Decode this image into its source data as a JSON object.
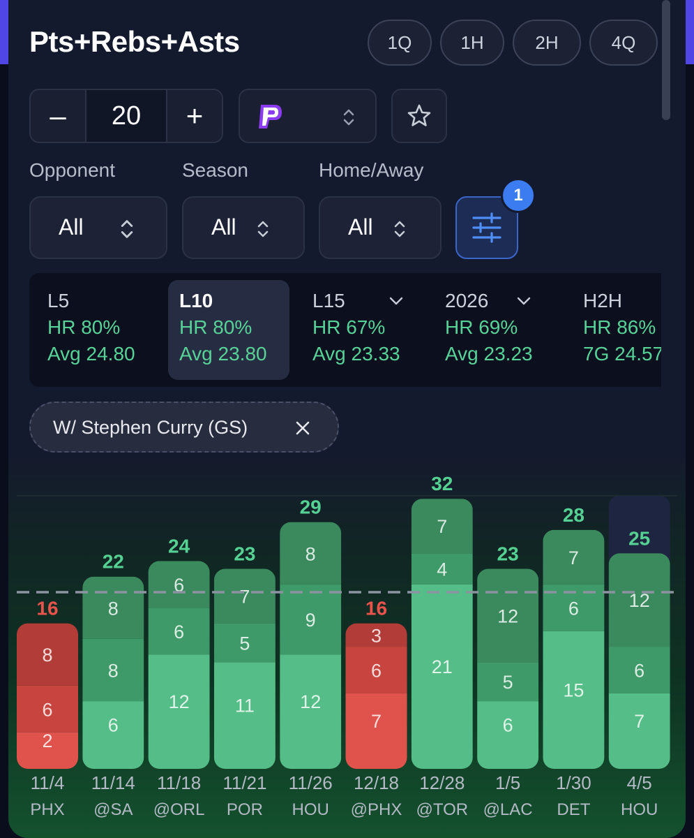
{
  "header": {
    "title": "Pts+Rebs+Asts",
    "periods": [
      "1Q",
      "1H",
      "2H",
      "4Q"
    ]
  },
  "line_control": {
    "minus": "–",
    "value": "20",
    "plus": "+"
  },
  "icons": {
    "sportsbook": "prizepicks-logo",
    "favorite": "star-icon",
    "filters": "sliders-icon",
    "remove_chip": "close-icon",
    "select": "chevron-updown-icon",
    "dropdown": "chevron-down-icon"
  },
  "filters": {
    "opponent": {
      "label": "Opponent",
      "value": "All"
    },
    "season": {
      "label": "Season",
      "value": "All"
    },
    "home_away": {
      "label": "Home/Away",
      "value": "All"
    },
    "active_count": "1"
  },
  "stats": [
    {
      "name": "L5",
      "hr": "HR 80%",
      "avg": "Avg 24.80",
      "active": false,
      "dropdown": false
    },
    {
      "name": "L10",
      "hr": "HR 80%",
      "avg": "Avg 23.80",
      "active": true,
      "dropdown": false
    },
    {
      "name": "L15",
      "hr": "HR 67%",
      "avg": "Avg 23.33",
      "active": false,
      "dropdown": true
    },
    {
      "name": "2026",
      "hr": "HR 69%",
      "avg": "Avg 23.23",
      "active": false,
      "dropdown": true
    },
    {
      "name": "H2H",
      "hr": "HR 86%",
      "avg": "7G 24.57",
      "active": false,
      "dropdown": false
    }
  ],
  "active_filter_chip": "W/ Stephen Curry (GS)",
  "colors": {
    "hit_bottom": "#55bd88",
    "hit_mid": "#3f9a69",
    "hit_top": "#3a8a5e",
    "hit_label": "#55d193",
    "miss_bottom": "#e0524c",
    "miss_mid": "#c8443f",
    "miss_top": "#b23c38",
    "miss_label": "#e8534c",
    "line": "#8c93a0"
  },
  "chart_data": {
    "type": "bar",
    "stacked": true,
    "line_value": 20,
    "categories": [
      "11/4 PHX",
      "11/14 @SA",
      "11/18 @ORL",
      "11/21 POR",
      "11/26 HOU",
      "12/18 @PHX",
      "12/28 @TOR",
      "1/5 @LAC",
      "1/30 DET",
      "4/5 HOU"
    ],
    "dates": [
      "11/4",
      "11/14",
      "11/18",
      "11/21",
      "11/26",
      "12/18",
      "12/28",
      "1/5",
      "1/30",
      "4/5"
    ],
    "opponents": [
      "PHX",
      "@SA",
      "@ORL",
      "POR",
      "HOU",
      "@PHX",
      "@TOR",
      "@LAC",
      "DET",
      "HOU"
    ],
    "totals": [
      16,
      22,
      24,
      23,
      29,
      16,
      32,
      23,
      28,
      25
    ],
    "segments": [
      [
        2,
        6,
        8
      ],
      [
        6,
        8,
        8
      ],
      [
        12,
        6,
        6
      ],
      [
        11,
        5,
        7
      ],
      [
        12,
        9,
        8
      ],
      [
        7,
        6,
        3
      ],
      [
        21,
        4,
        7
      ],
      [
        6,
        5,
        12
      ],
      [
        15,
        6,
        7
      ],
      [
        7,
        6,
        12
      ]
    ],
    "ylim": [
      0,
      34
    ]
  }
}
